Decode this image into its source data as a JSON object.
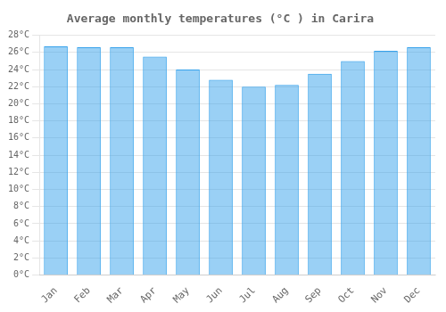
{
  "chart_data": {
    "type": "bar",
    "title": "Average monthly temperatures (°C ) in Carira",
    "categories": [
      "Jan",
      "Feb",
      "Mar",
      "Apr",
      "May",
      "Jun",
      "Jul",
      "Aug",
      "Sep",
      "Oct",
      "Nov",
      "Dec"
    ],
    "values": [
      26.7,
      26.6,
      26.6,
      25.5,
      24.0,
      22.8,
      22.0,
      22.2,
      23.5,
      25.0,
      26.2,
      26.6
    ],
    "ylim": [
      0,
      28
    ],
    "yticks": [
      {
        "value": 0,
        "label": "0°C"
      },
      {
        "value": 2,
        "label": "2°C"
      },
      {
        "value": 4,
        "label": "4°C"
      },
      {
        "value": 6,
        "label": "6°C"
      },
      {
        "value": 8,
        "label": "8°C"
      },
      {
        "value": 10,
        "label": "10°C"
      },
      {
        "value": 12,
        "label": "12°C"
      },
      {
        "value": 14,
        "label": "14°C"
      },
      {
        "value": 16,
        "label": "16°C"
      },
      {
        "value": 18,
        "label": "18°C"
      },
      {
        "value": 20,
        "label": "20°C"
      },
      {
        "value": 22,
        "label": "22°C"
      },
      {
        "value": 24,
        "label": "24°C"
      },
      {
        "value": 26,
        "label": "26°C"
      },
      {
        "value": 28,
        "label": "28°C"
      }
    ],
    "grid": true
  }
}
